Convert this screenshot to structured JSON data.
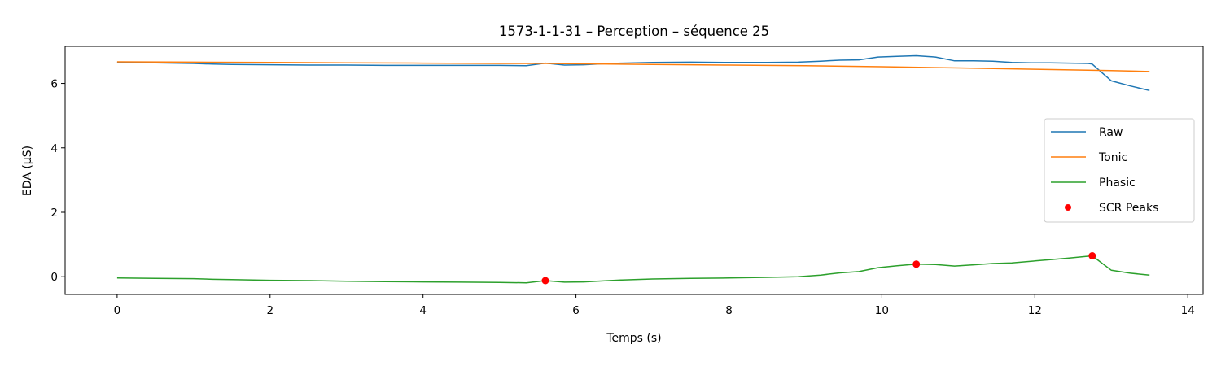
{
  "chart_data": {
    "type": "line",
    "title": "1573-1-1-31 – Perception – séquence 25",
    "xlabel": "Temps (s)",
    "ylabel": "EDA (μS)",
    "xlim": [
      -0.68,
      14.2
    ],
    "ylim": [
      -0.55,
      7.15
    ],
    "xticks": [
      0,
      2,
      4,
      6,
      8,
      10,
      12,
      14
    ],
    "yticks": [
      0,
      2,
      4,
      6
    ],
    "grid": false,
    "legend_position": "center-right",
    "series": [
      {
        "name": "Raw",
        "color": "#1f77b4",
        "x": [
          0,
          0.5,
          1.0,
          1.25,
          1.5,
          2.0,
          2.5,
          3.0,
          3.5,
          4.0,
          4.5,
          5.0,
          5.35,
          5.6,
          5.85,
          6.1,
          6.35,
          6.6,
          7.0,
          7.5,
          8.0,
          8.5,
          8.9,
          9.2,
          9.45,
          9.7,
          9.95,
          10.2,
          10.45,
          10.7,
          10.95,
          11.2,
          11.45,
          11.7,
          11.95,
          12.2,
          12.45,
          12.7,
          12.75,
          13.0,
          13.25,
          13.5
        ],
        "y": [
          6.65,
          6.64,
          6.62,
          6.6,
          6.59,
          6.58,
          6.57,
          6.57,
          6.56,
          6.56,
          6.56,
          6.56,
          6.55,
          6.63,
          6.57,
          6.58,
          6.61,
          6.63,
          6.65,
          6.66,
          6.65,
          6.65,
          6.66,
          6.69,
          6.72,
          6.73,
          6.82,
          6.84,
          6.86,
          6.82,
          6.7,
          6.7,
          6.69,
          6.65,
          6.64,
          6.64,
          6.63,
          6.62,
          6.6,
          6.08,
          5.92,
          5.78
        ]
      },
      {
        "name": "Tonic",
        "color": "#ff7f0e",
        "x": [
          0,
          1,
          2,
          3,
          4,
          5,
          5.6,
          6,
          7,
          8,
          9,
          10,
          11,
          12,
          13,
          13.5
        ],
        "y": [
          6.67,
          6.66,
          6.65,
          6.64,
          6.63,
          6.62,
          6.62,
          6.61,
          6.59,
          6.57,
          6.55,
          6.52,
          6.48,
          6.44,
          6.4,
          6.37
        ]
      },
      {
        "name": "Phasic",
        "color": "#2ca02c",
        "x": [
          0,
          0.5,
          1.0,
          1.25,
          1.5,
          2.0,
          2.5,
          3.0,
          3.5,
          4.0,
          4.5,
          5.0,
          5.35,
          5.6,
          5.85,
          6.1,
          6.35,
          6.6,
          7.0,
          7.5,
          8.0,
          8.5,
          8.9,
          9.2,
          9.45,
          9.7,
          9.95,
          10.2,
          10.45,
          10.7,
          10.95,
          11.2,
          11.45,
          11.7,
          11.95,
          12.2,
          12.45,
          12.75,
          13.0,
          13.25,
          13.5
        ],
        "y": [
          -0.04,
          -0.05,
          -0.06,
          -0.08,
          -0.09,
          -0.11,
          -0.12,
          -0.14,
          -0.15,
          -0.16,
          -0.17,
          -0.18,
          -0.19,
          -0.12,
          -0.17,
          -0.16,
          -0.13,
          -0.1,
          -0.07,
          -0.05,
          -0.04,
          -0.02,
          0.0,
          0.05,
          0.12,
          0.16,
          0.28,
          0.34,
          0.39,
          0.38,
          0.33,
          0.37,
          0.41,
          0.43,
          0.48,
          0.53,
          0.58,
          0.65,
          0.2,
          0.11,
          0.05
        ]
      }
    ],
    "peaks": {
      "name": "SCR Peaks",
      "color": "#ff0000",
      "x": [
        5.6,
        10.45,
        12.75
      ],
      "y": [
        -0.12,
        0.39,
        0.65
      ]
    }
  }
}
